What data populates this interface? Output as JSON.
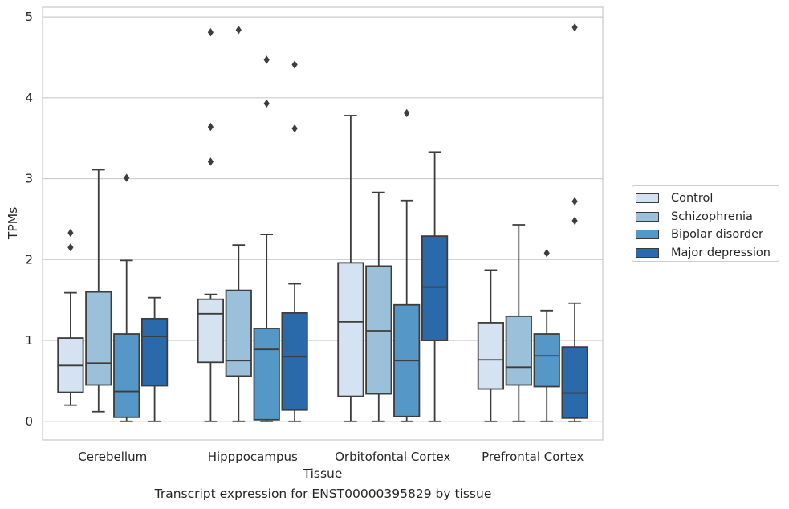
{
  "caption": "Transcript expression for ENST00000395829 by tissue",
  "chart_data": {
    "type": "box",
    "title": "",
    "xlabel": "Tissue",
    "ylabel": "TPMs",
    "ylim": [
      -0.23,
      5.12
    ],
    "yticks": [
      0,
      1,
      2,
      3,
      4,
      5
    ],
    "grid": "horizontal",
    "legend_position": "right",
    "categories": [
      "Cerebellum",
      "Hipppocampus",
      "Orbitofontal Cortex",
      "Prefrontal Cortex"
    ],
    "series": [
      {
        "name": "Control",
        "color": "#d4e2f1",
        "boxes": [
          {
            "whislo": 0.2,
            "q1": 0.36,
            "med": 0.69,
            "q3": 1.03,
            "whishi": 1.59,
            "fliers": [
              2.15,
              2.33
            ]
          },
          {
            "whislo": 0.0,
            "q1": 0.73,
            "med": 1.33,
            "q3": 1.51,
            "whishi": 1.57,
            "fliers": [
              3.21,
              3.64,
              4.81
            ]
          },
          {
            "whislo": 0.0,
            "q1": 0.31,
            "med": 1.23,
            "q3": 1.96,
            "whishi": 3.78,
            "fliers": []
          },
          {
            "whislo": 0.0,
            "q1": 0.4,
            "med": 0.76,
            "q3": 1.22,
            "whishi": 1.87,
            "fliers": []
          }
        ]
      },
      {
        "name": "Schizophrenia",
        "color": "#9ac0da",
        "boxes": [
          {
            "whislo": 0.12,
            "q1": 0.45,
            "med": 0.72,
            "q3": 1.6,
            "whishi": 3.11,
            "fliers": []
          },
          {
            "whislo": 0.0,
            "q1": 0.56,
            "med": 0.75,
            "q3": 1.62,
            "whishi": 2.18,
            "fliers": [
              4.84
            ]
          },
          {
            "whislo": 0.0,
            "q1": 0.34,
            "med": 1.12,
            "q3": 1.92,
            "whishi": 2.83,
            "fliers": []
          },
          {
            "whislo": 0.0,
            "q1": 0.45,
            "med": 0.67,
            "q3": 1.3,
            "whishi": 2.43,
            "fliers": []
          }
        ]
      },
      {
        "name": "Bipolar disorder",
        "color": "#5597c6",
        "boxes": [
          {
            "whislo": 0.0,
            "q1": 0.05,
            "med": 0.37,
            "q3": 1.08,
            "whishi": 1.99,
            "fliers": [
              3.01
            ]
          },
          {
            "whislo": 0.0,
            "q1": 0.02,
            "med": 0.89,
            "q3": 1.15,
            "whishi": 2.31,
            "fliers": [
              3.93,
              4.47
            ]
          },
          {
            "whislo": 0.0,
            "q1": 0.06,
            "med": 0.75,
            "q3": 1.44,
            "whishi": 2.73,
            "fliers": [
              3.81
            ]
          },
          {
            "whislo": 0.0,
            "q1": 0.43,
            "med": 0.81,
            "q3": 1.08,
            "whishi": 1.37,
            "fliers": [
              2.08
            ]
          }
        ]
      },
      {
        "name": "Major depression",
        "color": "#2a69aa",
        "boxes": [
          {
            "whislo": 0.0,
            "q1": 0.44,
            "med": 1.05,
            "q3": 1.27,
            "whishi": 1.53,
            "fliers": []
          },
          {
            "whislo": 0.0,
            "q1": 0.14,
            "med": 0.8,
            "q3": 1.34,
            "whishi": 1.7,
            "fliers": [
              3.62,
              4.41
            ]
          },
          {
            "whislo": 0.0,
            "q1": 1.0,
            "med": 1.66,
            "q3": 2.29,
            "whishi": 3.33,
            "fliers": []
          },
          {
            "whislo": 0.0,
            "q1": 0.04,
            "med": 0.35,
            "q3": 0.92,
            "whishi": 1.46,
            "fliers": [
              2.48,
              2.72,
              4.87
            ]
          }
        ]
      }
    ]
  }
}
